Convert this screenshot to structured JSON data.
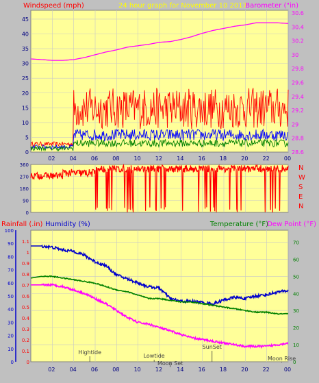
{
  "header": {
    "left_label": "Windspeed (mph)",
    "center_label": "24 hour graph for   November 10 2017",
    "right_label": "Barometer (\"in)"
  },
  "colors": {
    "background": "#c0c0c0",
    "plot_bg": "#ffff99",
    "grid": "#c8c8c8",
    "wind_gust": "#ff0000",
    "wind_avg": "#0000ff",
    "wind_low": "#008000",
    "barometer": "#ff00ff",
    "direction": "#ff0000",
    "humidity": "#0000cc",
    "temperature": "#008000",
    "dewpoint": "#ff00ff",
    "rainfall_label": "#ff0000",
    "humidity_label": "#0000cc",
    "temperature_label": "#008000",
    "dewpoint_label": "#ff00ff",
    "center_title": "#ffff00"
  },
  "chart_data": [
    {
      "type": "line",
      "x_ticks": [
        "02",
        "04",
        "06",
        "08",
        "10",
        "12",
        "14",
        "16",
        "18",
        "20",
        "22",
        "00"
      ],
      "y_left": {
        "ticks": [
          "0",
          "5",
          "10",
          "15",
          "20",
          "25",
          "30",
          "35",
          "40",
          "45"
        ],
        "ylim": [
          0,
          48
        ]
      },
      "y_right": {
        "ticks": [
          "28.6",
          "28.8",
          "29",
          "29.2",
          "29.4",
          "29.6",
          "29.8",
          "30",
          "30.2",
          "30.4",
          "30.6"
        ],
        "ylim": [
          28.6,
          30.64
        ]
      },
      "series": [
        {
          "key": "barometer",
          "axis": "right",
          "x": [
            0,
            1,
            2,
            3,
            4,
            5,
            6,
            7,
            8,
            9,
            10,
            11,
            12,
            13,
            14,
            15,
            16,
            17,
            18,
            19,
            20,
            21,
            22,
            23,
            24
          ],
          "values": [
            29.94,
            29.93,
            29.92,
            29.92,
            29.93,
            29.96,
            30.0,
            30.04,
            30.07,
            30.11,
            30.13,
            30.15,
            30.18,
            30.19,
            30.22,
            30.26,
            30.31,
            30.35,
            30.38,
            30.41,
            30.43,
            30.46,
            30.46,
            30.46,
            30.45
          ]
        }
      ]
    },
    {
      "type": "line",
      "x_ticks": [
        "02",
        "04",
        "06",
        "08",
        "10",
        "12",
        "14",
        "16",
        "18",
        "20",
        "22",
        "00"
      ],
      "y_left": {
        "ticks": [
          "0",
          "90",
          "180",
          "270",
          "360"
        ],
        "ylim": [
          0,
          360
        ]
      },
      "y_right": {
        "ticks": [
          "N",
          "W",
          "S",
          "E",
          "N"
        ]
      }
    },
    {
      "type": "line",
      "x_ticks": [
        "02",
        "04",
        "06",
        "08",
        "10",
        "12",
        "14",
        "16",
        "18",
        "20",
        "22",
        "00"
      ],
      "labels": {
        "rainfall": "Rainfall (.in)",
        "humidity": "Humidity (%)",
        "temperature": "Temperature (°F)",
        "dewpoint": "Dew Point (°F)"
      },
      "y_rain": {
        "ticks": [
          "0",
          "0.1",
          "0.2",
          "0.3",
          "0.4",
          "0.5",
          "0.6",
          "0.7",
          "0.8",
          "0.9",
          "1",
          "1.1"
        ],
        "ylim": [
          0,
          1.2
        ]
      },
      "y_humidity": {
        "ticks": [
          "0",
          "10",
          "20",
          "30",
          "40",
          "50",
          "60",
          "70",
          "80",
          "90",
          "100"
        ],
        "ylim": [
          0,
          100
        ]
      },
      "y_temp": {
        "ticks": [
          "0",
          "10",
          "20",
          "30",
          "40",
          "50",
          "60",
          "70"
        ],
        "ylim": [
          0,
          77
        ]
      },
      "series": [
        {
          "key": "humidity",
          "axis": "humidity",
          "x": [
            0,
            1,
            2,
            3,
            4,
            5,
            6,
            7,
            8,
            9,
            10,
            11,
            12,
            13,
            14,
            15,
            16,
            17,
            18,
            19,
            20,
            21,
            22,
            23,
            24
          ],
          "values": [
            88,
            88,
            87,
            85,
            84,
            81,
            76,
            73,
            66,
            63,
            60,
            57,
            56,
            48,
            46,
            46,
            45,
            44,
            47,
            49,
            48,
            50,
            51,
            53,
            54
          ]
        },
        {
          "key": "temperature",
          "axis": "temp",
          "x": [
            0,
            1,
            2,
            3,
            4,
            5,
            6,
            7,
            8,
            9,
            10,
            11,
            12,
            13,
            14,
            15,
            16,
            17,
            18,
            19,
            20,
            21,
            22,
            23,
            24
          ],
          "values": [
            49,
            50,
            50,
            49,
            48,
            47,
            46,
            44,
            42,
            41,
            39,
            37,
            37,
            36,
            35,
            35,
            34,
            33,
            32,
            31,
            30,
            29,
            29,
            28,
            28
          ]
        },
        {
          "key": "dewpoint",
          "axis": "temp",
          "x": [
            0,
            1,
            2,
            3,
            4,
            5,
            6,
            7,
            8,
            9,
            10,
            11,
            12,
            13,
            14,
            15,
            16,
            17,
            18,
            19,
            20,
            21,
            22,
            23,
            24
          ],
          "values": [
            45,
            45,
            45,
            44,
            42,
            40,
            37,
            34,
            30,
            26,
            23,
            22,
            20,
            18,
            16,
            14,
            13,
            12,
            11,
            10,
            9,
            9,
            9,
            10,
            11
          ]
        }
      ],
      "annotations": [
        {
          "text": "Hightide",
          "x": 5.5
        },
        {
          "text": "Lowtide",
          "x": 11.5
        },
        {
          "text": "Moon Set",
          "x": 13.0
        },
        {
          "text": "SunSet",
          "x": 16.9
        },
        {
          "text": "Moon Rise",
          "x": 23.4
        }
      ]
    }
  ]
}
